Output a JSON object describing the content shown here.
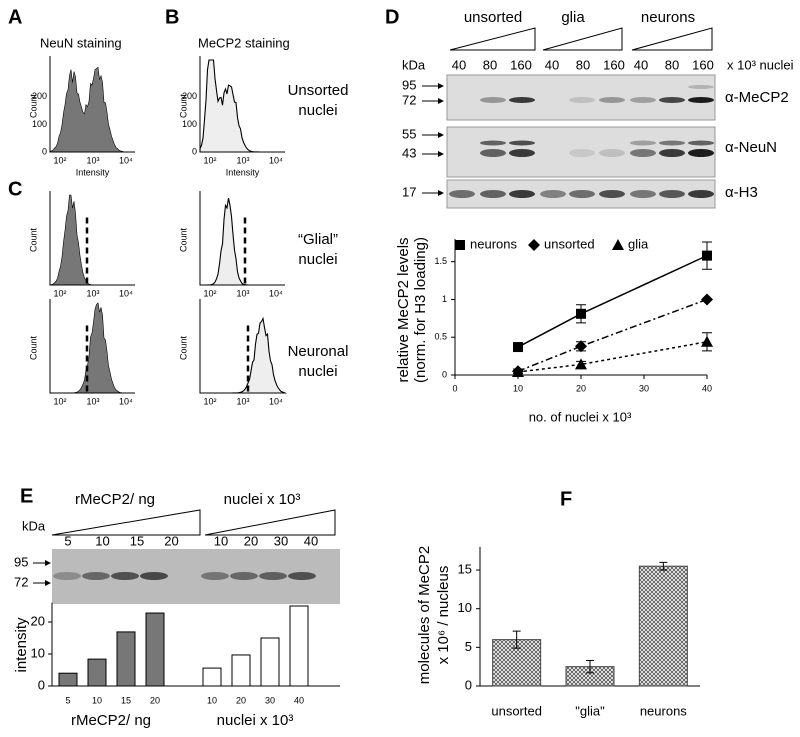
{
  "panel_labels": [
    "A",
    "B",
    "C",
    "D",
    "E",
    "F"
  ],
  "histograms": {
    "titles": [
      "NeuN staining",
      "MeCP2 staining"
    ],
    "row_labels": [
      [
        "Unsorted",
        "nuclei"
      ],
      [
        "“Glial”",
        "nuclei"
      ],
      [
        "Neuronal",
        "nuclei"
      ]
    ],
    "y_label": "Count",
    "x_label": "Intensity",
    "y_tick_labels": [
      "0",
      "100",
      "200"
    ],
    "x_tick_labels": [
      "10²",
      "10³",
      "10⁴"
    ]
  },
  "blot_d": {
    "groups": [
      "unsorted",
      "glia",
      "neurons"
    ],
    "unit_label": "kDa",
    "loads": [
      "40",
      "80",
      "160"
    ],
    "load_unit": "x 10³ nuclei",
    "markers": [
      "95",
      "72",
      "55",
      "43",
      "17"
    ],
    "antibodies": [
      "α-MeCP2",
      "α-NeuN",
      "α-H3"
    ]
  },
  "blot_e": {
    "unit_label": "kDa",
    "markers": [
      "95",
      "72"
    ],
    "groups": [
      "rMeCP2/ ng",
      "nuclei x 10³"
    ],
    "loads": [
      [
        "5",
        "10",
        "15",
        "20"
      ],
      [
        "10",
        "20",
        "30",
        "40"
      ]
    ]
  },
  "chart_data": [
    {
      "type": "line",
      "y_label": [
        "relative MeCP2 levels",
        "(norm. for H3 loading)"
      ],
      "x_label": "no. of nuclei x 10³",
      "x": [
        10,
        20,
        40
      ],
      "xlim": [
        0,
        40
      ],
      "xticks": [
        0,
        10,
        20,
        30,
        40
      ],
      "ylim": [
        0,
        1.8
      ],
      "yticks": [
        0,
        0.5,
        1,
        1.5
      ],
      "series": [
        {
          "name": "neurons",
          "color": "#000000",
          "marker": "square",
          "dash": "solid",
          "values": [
            0.37,
            0.81,
            1.58
          ],
          "errors": [
            0.05,
            0.12,
            0.18
          ]
        },
        {
          "name": "unsorted",
          "color": "#000000",
          "marker": "diamond",
          "dash": "dashdot",
          "values": [
            0.05,
            0.38,
            1.0
          ],
          "errors": [
            0.03,
            0.06,
            0
          ]
        },
        {
          "name": "glia",
          "color": "#000000",
          "marker": "triangle",
          "dash": "dotted",
          "values": [
            0.04,
            0.14,
            0.44
          ],
          "errors": [
            0.02,
            0.04,
            0.12
          ]
        }
      ]
    },
    {
      "type": "grouped_bar",
      "y_label": "intensity",
      "ylim": [
        0,
        26
      ],
      "yticks": [
        0,
        10,
        20
      ],
      "groups": [
        {
          "name": "rMeCP2/ ng",
          "color": "#777777",
          "categories": [
            "5",
            "10",
            "15",
            "20"
          ],
          "values": [
            4,
            8.4,
            16.9,
            22.8
          ]
        },
        {
          "name": "nuclei x 10³",
          "color": "#ffffff",
          "categories": [
            "10",
            "20",
            "30",
            "40"
          ],
          "values": [
            5.6,
            9.7,
            15,
            25
          ]
        }
      ]
    },
    {
      "type": "bar",
      "y_label": [
        "molecules of MeCP2",
        "x 10⁶ / nucleus"
      ],
      "categories": [
        "unsorted",
        "\"glia\"",
        "neurons"
      ],
      "values": [
        6.0,
        2.5,
        15.5
      ],
      "errors": [
        1.1,
        0.8,
        0.5
      ],
      "ylim": [
        0,
        18
      ],
      "yticks": [
        0,
        5,
        10,
        15
      ]
    }
  ]
}
